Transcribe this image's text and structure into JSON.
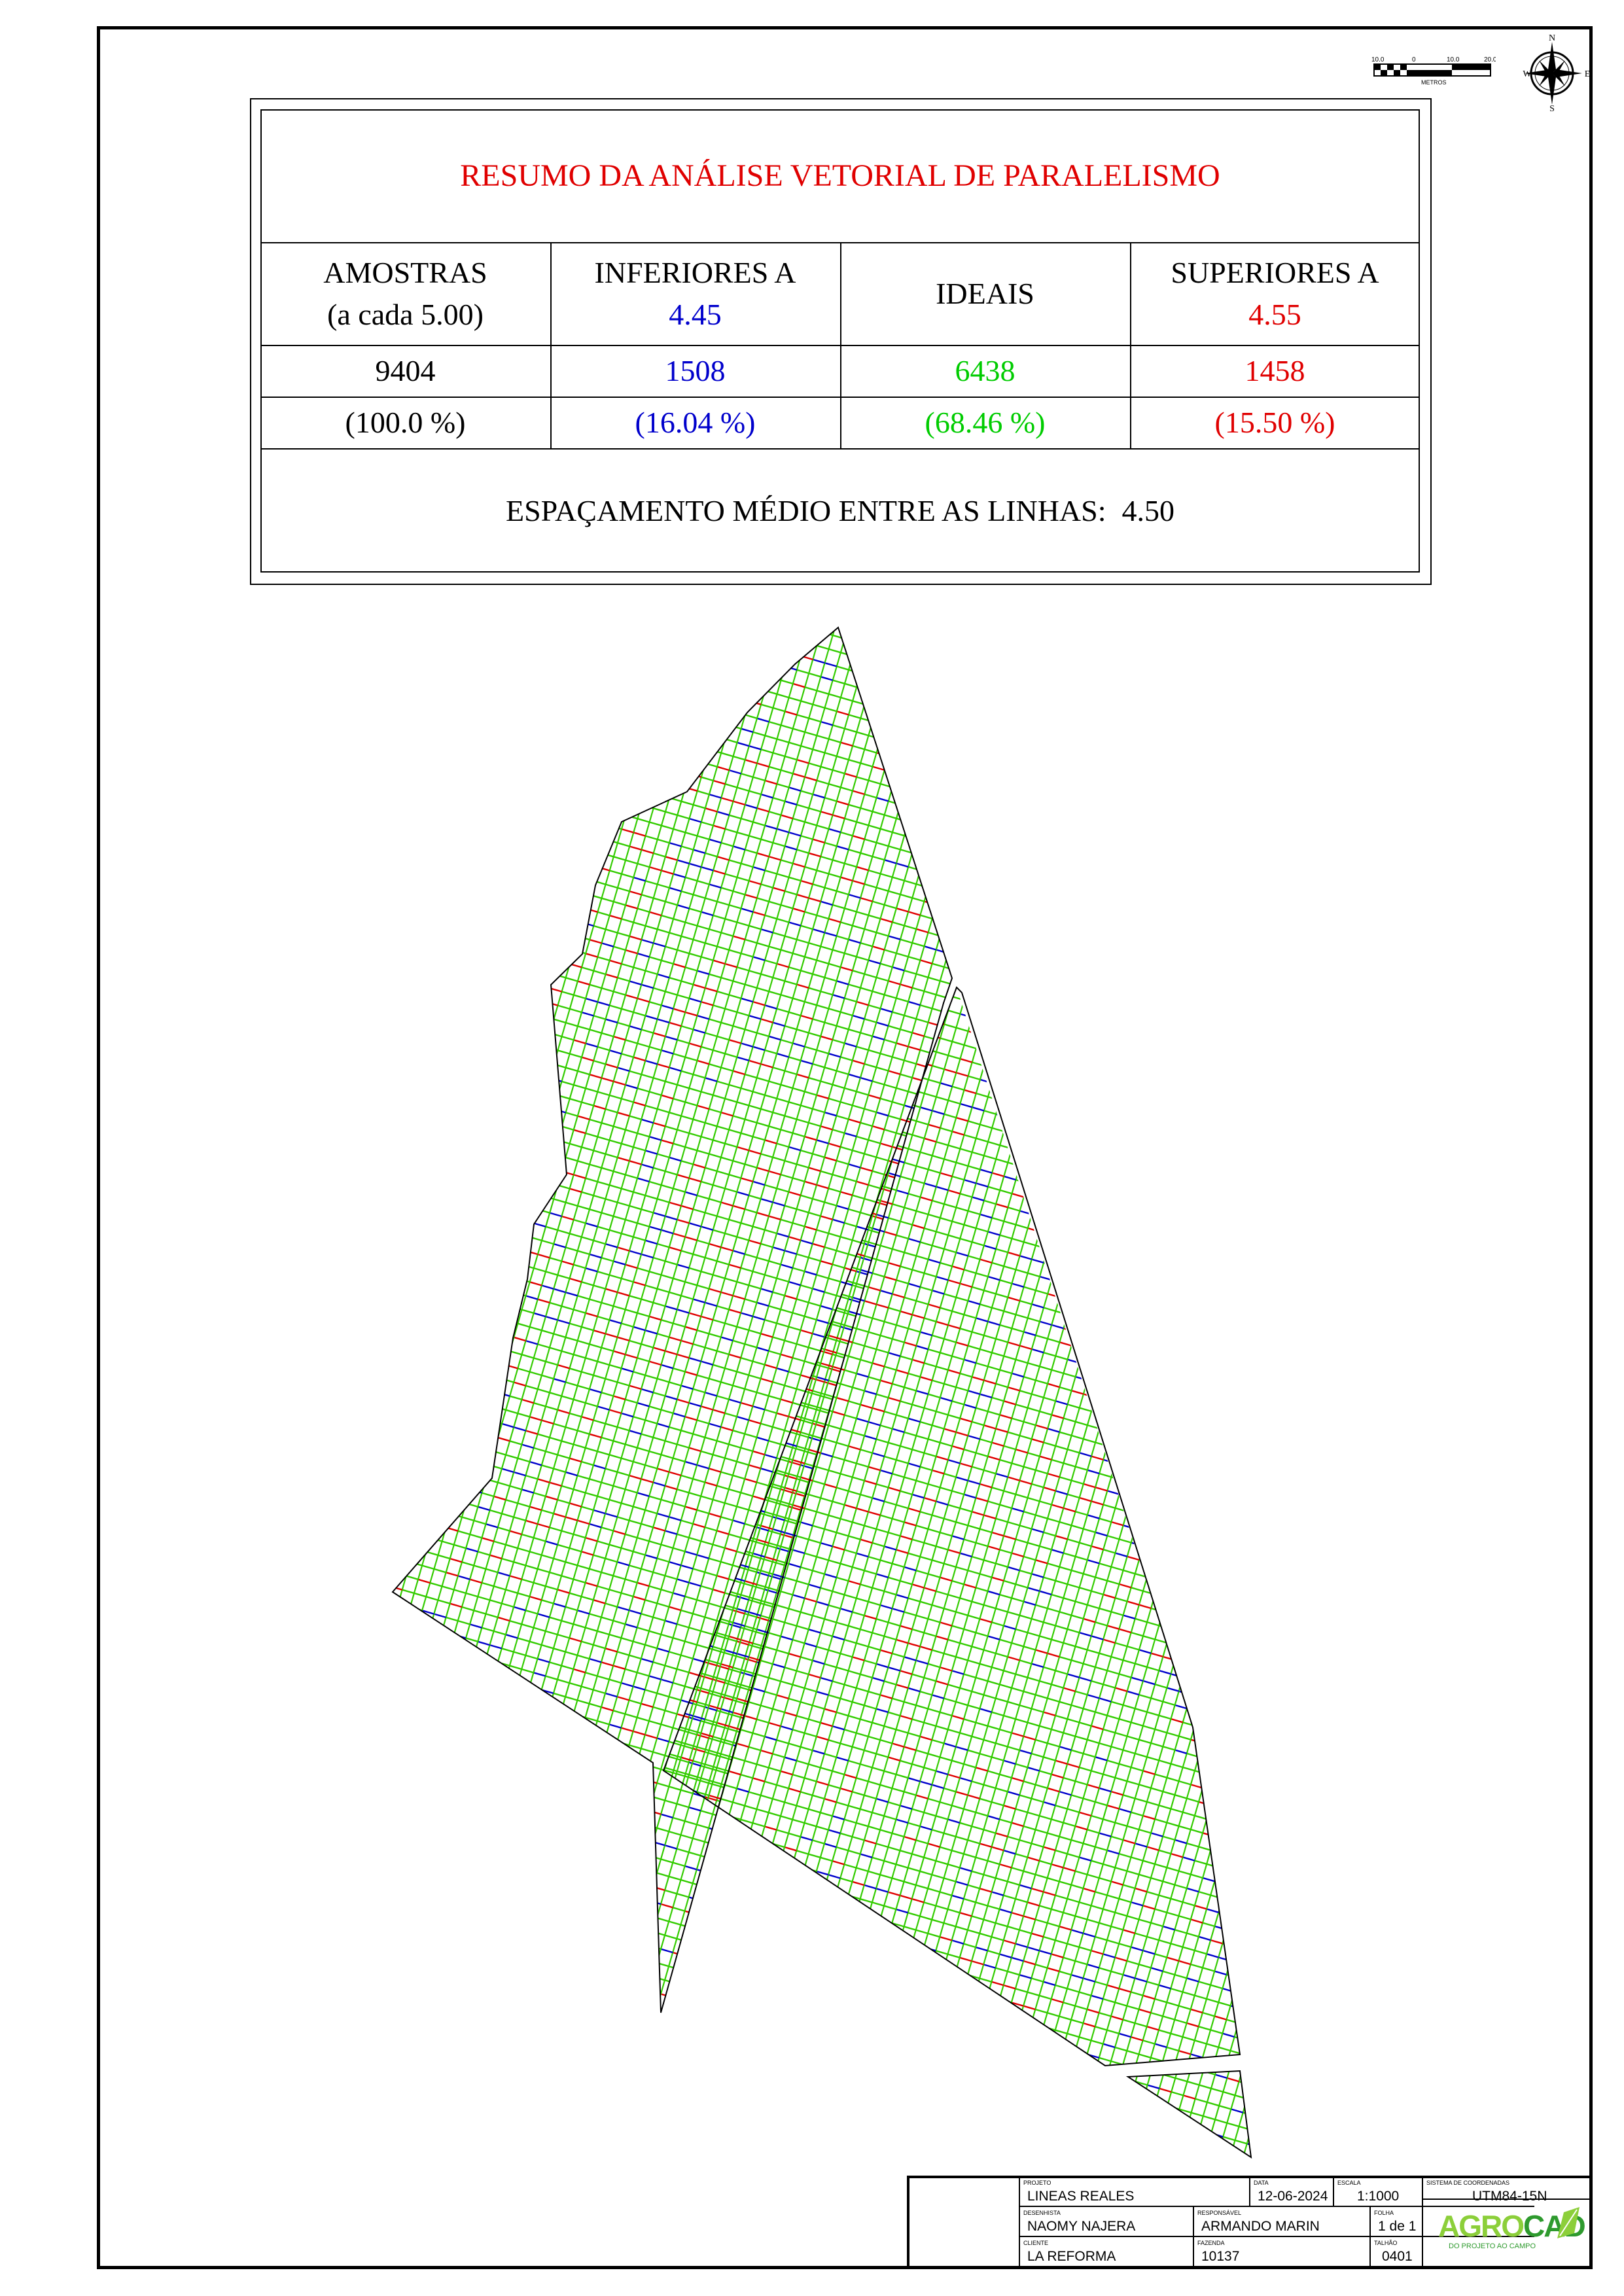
{
  "summary": {
    "title": "RESUMO DA ANÁLISE VETORIAL DE PARALELISMO",
    "col1_line1": "AMOSTRAS",
    "col1_line2": "(a cada 5.00)",
    "col2_line1": "INFERIORES A",
    "col2_value": "4.45",
    "col3": "IDEAIS",
    "col4_line1": "SUPERIORES A",
    "col4_value": "4.55",
    "total": "9404",
    "below": "1508",
    "ideal": "6438",
    "above": "1458",
    "total_pct": "(100.0 %)",
    "below_pct": "(16.04 %)",
    "ideal_pct": "(68.46 %)",
    "above_pct": "(15.50 %)",
    "mean_label": "ESPAÇAMENTO MÉDIO ENTRE AS LINHAS:",
    "mean_value": "4.50"
  },
  "scale_bar": {
    "ticks": [
      "10.0",
      "0",
      "10.0",
      "20.0"
    ],
    "unit": "METROS"
  },
  "compass": {
    "n": "N",
    "s": "S",
    "e": "E",
    "w": "W"
  },
  "colors": {
    "below": "#0000cc",
    "ideal": "#33cc00",
    "above": "#e00000",
    "boundary": "#000000"
  },
  "title_block": {
    "projeto_label": "PROJETO",
    "projeto": "LINEAS REALES",
    "data_label": "DATA",
    "data": "12-06-2024",
    "escala_label": "ESCALA",
    "escala": "1:1000",
    "sistema_label": "SISTEMA DE COORDENADAS",
    "sistema": "UTM84-15N",
    "desenhista_label": "DESENHISTA",
    "desenhista": "NAOMY NAJERA",
    "responsavel_label": "RESPONSÁVEL",
    "responsavel": "ARMANDO MARIN",
    "folha_label": "FOLHA",
    "folha": "1 de 1",
    "cliente_label": "CLIENTE",
    "cliente": "LA REFORMA",
    "fazenda_label": "FAZENDA",
    "fazenda": "10137",
    "talhao_label": "TALHÃO",
    "talhao": "0401",
    "logo_text_a": "AGRO",
    "logo_text_b": "CAD",
    "logo_tagline": "DO PROJETO AO CAMPO"
  }
}
